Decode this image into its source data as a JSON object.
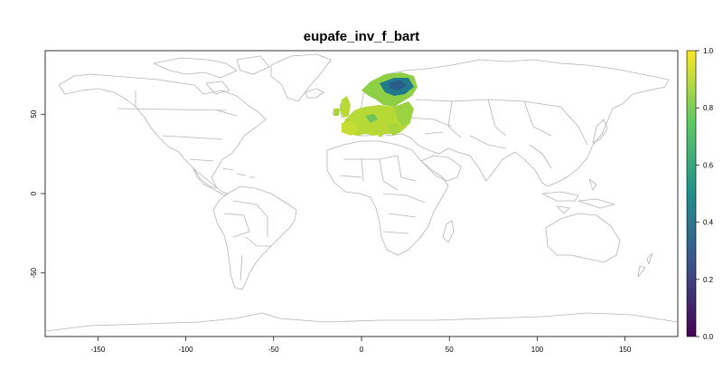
{
  "map": {
    "title": "eupafe_inv_f_bart",
    "x_ticks": [
      "-150",
      "-100",
      "-50",
      "0",
      "50",
      "100",
      "150"
    ],
    "y_ticks": [
      "-50",
      "0",
      "50"
    ],
    "xlim": [
      -180,
      180
    ],
    "ylim": [
      -90,
      90
    ],
    "base_layer": "world country borders, grey outline",
    "raster_extent": "Europe"
  },
  "legend": {
    "ticks": [
      "0.0",
      "0.2",
      "0.4",
      "0.6",
      "0.8",
      "1.0"
    ],
    "range": [
      0,
      1
    ],
    "palette": [
      "#440154",
      "#3b528b",
      "#21908c",
      "#5dc963",
      "#fde725"
    ]
  },
  "colors": {
    "border": "#b4b4b4",
    "frame": "#000000",
    "raster_high": "#b7d936",
    "raster_mid": "#6cc45a",
    "raster_low": "#1f7a8c"
  }
}
